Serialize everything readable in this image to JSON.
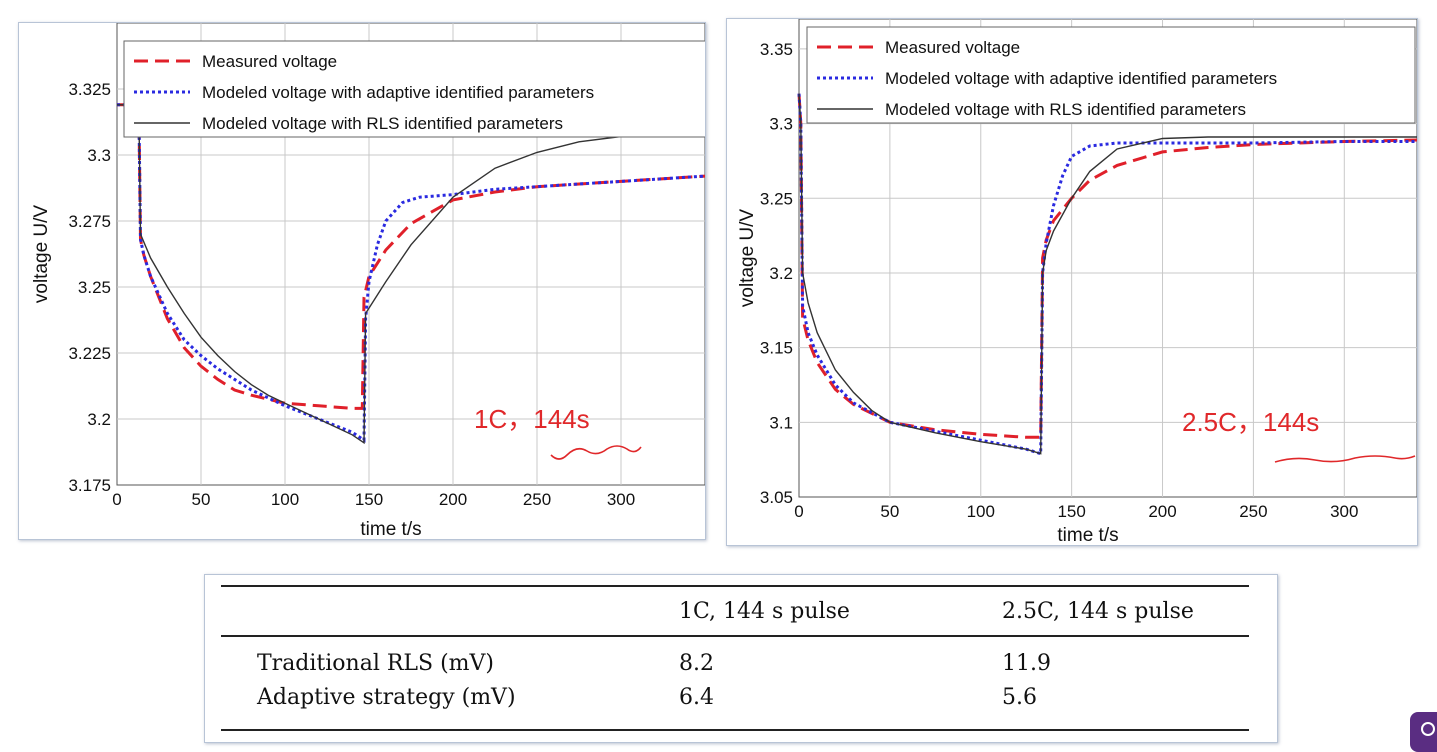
{
  "chart_data": [
    {
      "type": "line",
      "xlabel": "time t/s",
      "ylabel": "voltage U/V",
      "xlim": [
        0,
        350
      ],
      "ylim": [
        3.175,
        3.35
      ],
      "xticks": [
        0,
        50,
        100,
        150,
        200,
        250,
        300
      ],
      "yticks": [
        3.175,
        3.2,
        3.225,
        3.25,
        3.275,
        3.3,
        3.325
      ],
      "ytick_labels": [
        "3.175",
        "3.2",
        "3.225",
        "3.25",
        "3.275",
        "3.3",
        "3.325"
      ],
      "grid": true,
      "legend_position": "top",
      "annotation": "1C，144s",
      "series": [
        {
          "name": "Measured voltage",
          "color": "#e0202a",
          "style": "dashed",
          "x": [
            0,
            13,
            14,
            16,
            20,
            30,
            40,
            50,
            60,
            70,
            80,
            100,
            120,
            140,
            146,
            147,
            150,
            160,
            175,
            200,
            225,
            250,
            275,
            300,
            350
          ],
          "y": [
            3.319,
            3.319,
            3.268,
            3.262,
            3.254,
            3.238,
            3.227,
            3.22,
            3.215,
            3.211,
            3.209,
            3.206,
            3.205,
            3.204,
            3.204,
            3.246,
            3.254,
            3.264,
            3.274,
            3.283,
            3.286,
            3.288,
            3.289,
            3.29,
            3.292
          ]
        },
        {
          "name": "Modeled voltage with adaptive identified parameters",
          "color": "#2a2ae0",
          "style": "dotted",
          "x": [
            0,
            13,
            14,
            16,
            20,
            30,
            40,
            50,
            60,
            70,
            80,
            90,
            100,
            120,
            140,
            147,
            148,
            150,
            155,
            160,
            170,
            180,
            200,
            225,
            250,
            275,
            300,
            350
          ],
          "y": [
            3.319,
            3.319,
            3.268,
            3.262,
            3.254,
            3.24,
            3.23,
            3.224,
            3.219,
            3.215,
            3.211,
            3.208,
            3.205,
            3.2,
            3.195,
            3.192,
            3.238,
            3.252,
            3.266,
            3.275,
            3.282,
            3.284,
            3.285,
            3.287,
            3.288,
            3.289,
            3.29,
            3.292
          ]
        },
        {
          "name": "Modeled voltage with RLS identified parameters",
          "color": "#333333",
          "style": "solid",
          "x": [
            0,
            13,
            14,
            20,
            30,
            40,
            50,
            60,
            70,
            80,
            90,
            100,
            120,
            140,
            147,
            148,
            150,
            160,
            175,
            200,
            225,
            250,
            275,
            300,
            325,
            350
          ],
          "y": [
            3.319,
            3.319,
            3.27,
            3.261,
            3.25,
            3.24,
            3.231,
            3.224,
            3.218,
            3.213,
            3.209,
            3.206,
            3.2,
            3.194,
            3.191,
            3.24,
            3.242,
            3.252,
            3.266,
            3.284,
            3.295,
            3.301,
            3.305,
            3.307,
            3.308,
            3.309
          ]
        }
      ]
    },
    {
      "type": "line",
      "xlabel": "time t/s",
      "ylabel": "voltage U/V",
      "xlim": [
        0,
        340
      ],
      "ylim": [
        3.05,
        3.37
      ],
      "xticks": [
        0,
        50,
        100,
        150,
        200,
        250,
        300
      ],
      "yticks": [
        3.05,
        3.1,
        3.15,
        3.2,
        3.25,
        3.3,
        3.35
      ],
      "ytick_labels": [
        "3.05",
        "3.1",
        "3.15",
        "3.2",
        "3.25",
        "3.3",
        "3.35"
      ],
      "grid": true,
      "legend_position": "top",
      "annotation": "2.5C，144s",
      "series": [
        {
          "name": "Measured voltage",
          "color": "#e0202a",
          "style": "dashed",
          "x": [
            0,
            1,
            2,
            5,
            10,
            20,
            30,
            50,
            75,
            100,
            125,
            133,
            134,
            136,
            140,
            150,
            160,
            175,
            200,
            225,
            250,
            300,
            340
          ],
          "y": [
            3.32,
            3.3,
            3.17,
            3.155,
            3.14,
            3.122,
            3.112,
            3.1,
            3.095,
            3.092,
            3.09,
            3.09,
            3.21,
            3.222,
            3.235,
            3.25,
            3.262,
            3.272,
            3.281,
            3.284,
            3.286,
            3.288,
            3.289
          ]
        },
        {
          "name": "Modeled voltage with adaptive identified parameters",
          "color": "#2a2ae0",
          "style": "dotted",
          "x": [
            0,
            1,
            2,
            5,
            10,
            20,
            30,
            50,
            75,
            100,
            125,
            133,
            134,
            136,
            140,
            145,
            150,
            160,
            175,
            200,
            225,
            250,
            300,
            340
          ],
          "y": [
            3.32,
            3.3,
            3.178,
            3.16,
            3.145,
            3.125,
            3.113,
            3.1,
            3.094,
            3.088,
            3.082,
            3.079,
            3.2,
            3.22,
            3.245,
            3.265,
            3.278,
            3.285,
            3.287,
            3.287,
            3.287,
            3.287,
            3.288,
            3.288
          ]
        },
        {
          "name": "Modeled voltage with RLS identified parameters",
          "color": "#333333",
          "style": "solid",
          "x": [
            0,
            1,
            2,
            5,
            10,
            20,
            30,
            40,
            50,
            75,
            100,
            125,
            133,
            134,
            136,
            140,
            150,
            160,
            175,
            200,
            225,
            250,
            300,
            340
          ],
          "y": [
            3.32,
            3.3,
            3.2,
            3.18,
            3.16,
            3.135,
            3.12,
            3.108,
            3.1,
            3.093,
            3.087,
            3.082,
            3.079,
            3.2,
            3.215,
            3.228,
            3.25,
            3.268,
            3.283,
            3.29,
            3.291,
            3.291,
            3.291,
            3.291
          ]
        }
      ]
    }
  ],
  "table": {
    "columns": [
      "",
      "1C, 144 s pulse",
      "2.5C, 144 s pulse"
    ],
    "rows": [
      {
        "label": "Traditional RLS (mV)",
        "values": [
          "8.2",
          "11.9"
        ]
      },
      {
        "label": "Adaptive strategy (mV)",
        "values": [
          "6.4",
          "5.6"
        ]
      }
    ]
  }
}
